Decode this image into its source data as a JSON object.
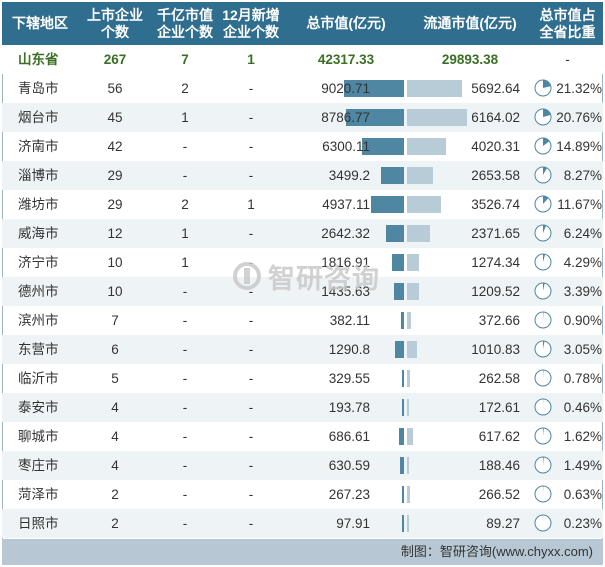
{
  "chart_data": {
    "type": "table",
    "columns": [
      "下辖地区",
      "上市企业\n个数",
      "千亿市值\n企业个数",
      "12月新增\n企业个数",
      "总市值(亿元)",
      "流通市值(亿元)",
      "总市值占\n全省比重"
    ],
    "province": {
      "name": "山东省",
      "listed": "267",
      "trillion": "7",
      "new_dec": "1",
      "total": "42317.33",
      "float": "29893.38",
      "pct": "-"
    },
    "rows": [
      {
        "name": "青岛市",
        "listed": "56",
        "trillion": "2",
        "new_dec": "-",
        "total": 9020.71,
        "total_text": "9020.71",
        "float": 5692.64,
        "float_text": "5692.64",
        "pct": 21.32,
        "pct_text": "21.32%"
      },
      {
        "name": "烟台市",
        "listed": "45",
        "trillion": "1",
        "new_dec": "-",
        "total": 8786.77,
        "total_text": "8786.77",
        "float": 6164.02,
        "float_text": "6164.02",
        "pct": 20.76,
        "pct_text": "20.76%"
      },
      {
        "name": "济南市",
        "listed": "42",
        "trillion": "-",
        "new_dec": "-",
        "total": 6300.11,
        "total_text": "6300.11",
        "float": 4020.31,
        "float_text": "4020.31",
        "pct": 14.89,
        "pct_text": "14.89%"
      },
      {
        "name": "淄博市",
        "listed": "29",
        "trillion": "-",
        "new_dec": "-",
        "total": 3499.2,
        "total_text": "3499.2",
        "float": 2653.58,
        "float_text": "2653.58",
        "pct": 8.27,
        "pct_text": "8.27%"
      },
      {
        "name": "潍坊市",
        "listed": "29",
        "trillion": "2",
        "new_dec": "1",
        "total": 4937.11,
        "total_text": "4937.11",
        "float": 3526.74,
        "float_text": "3526.74",
        "pct": 11.67,
        "pct_text": "11.67%"
      },
      {
        "name": "威海市",
        "listed": "12",
        "trillion": "1",
        "new_dec": "-",
        "total": 2642.32,
        "total_text": "2642.32",
        "float": 2371.65,
        "float_text": "2371.65",
        "pct": 6.24,
        "pct_text": "6.24%"
      },
      {
        "name": "济宁市",
        "listed": "10",
        "trillion": "1",
        "new_dec": "-",
        "total": 1816.91,
        "total_text": "1816.91",
        "float": 1274.34,
        "float_text": "1274.34",
        "pct": 4.29,
        "pct_text": "4.29%"
      },
      {
        "name": "德州市",
        "listed": "10",
        "trillion": "-",
        "new_dec": "-",
        "total": 1435.63,
        "total_text": "1435.63",
        "float": 1209.52,
        "float_text": "1209.52",
        "pct": 3.39,
        "pct_text": "3.39%"
      },
      {
        "name": "滨州市",
        "listed": "7",
        "trillion": "-",
        "new_dec": "-",
        "total": 382.11,
        "total_text": "382.11",
        "float": 372.66,
        "float_text": "372.66",
        "pct": 0.9,
        "pct_text": "0.90%"
      },
      {
        "name": "东营市",
        "listed": "6",
        "trillion": "-",
        "new_dec": "-",
        "total": 1290.8,
        "total_text": "1290.8",
        "float": 1010.83,
        "float_text": "1010.83",
        "pct": 3.05,
        "pct_text": "3.05%"
      },
      {
        "name": "临沂市",
        "listed": "5",
        "trillion": "-",
        "new_dec": "-",
        "total": 329.55,
        "total_text": "329.55",
        "float": 262.58,
        "float_text": "262.58",
        "pct": 0.78,
        "pct_text": "0.78%"
      },
      {
        "name": "泰安市",
        "listed": "4",
        "trillion": "-",
        "new_dec": "-",
        "total": 193.78,
        "total_text": "193.78",
        "float": 172.61,
        "float_text": "172.61",
        "pct": 0.46,
        "pct_text": "0.46%"
      },
      {
        "name": "聊城市",
        "listed": "4",
        "trillion": "-",
        "new_dec": "-",
        "total": 686.61,
        "total_text": "686.61",
        "float": 617.62,
        "float_text": "617.62",
        "pct": 1.62,
        "pct_text": "1.62%"
      },
      {
        "name": "枣庄市",
        "listed": "4",
        "trillion": "-",
        "new_dec": "-",
        "total": 630.59,
        "total_text": "630.59",
        "float": 188.46,
        "float_text": "188.46",
        "pct": 1.49,
        "pct_text": "1.49%"
      },
      {
        "name": "菏泽市",
        "listed": "2",
        "trillion": "-",
        "new_dec": "-",
        "total": 267.23,
        "total_text": "267.23",
        "float": 266.52,
        "float_text": "266.52",
        "pct": 0.63,
        "pct_text": "0.63%"
      },
      {
        "name": "日照市",
        "listed": "2",
        "trillion": "-",
        "new_dec": "-",
        "total": 97.91,
        "total_text": "97.91",
        "float": 89.27,
        "float_text": "89.27",
        "pct": 0.23,
        "pct_text": "0.23%"
      }
    ]
  },
  "footer": {
    "credit": "制图：智研咨询(www.chyxx.com)"
  },
  "watermark": {
    "text": "智研咨询"
  },
  "colors": {
    "header_bg": "#2f6e8f",
    "total_bar": "#4f86a2",
    "float_bar": "#b8ccd8",
    "province_text": "#3a6f24",
    "pie_fill": "#4f86a2",
    "footer_bg": "#b7c7d3"
  }
}
